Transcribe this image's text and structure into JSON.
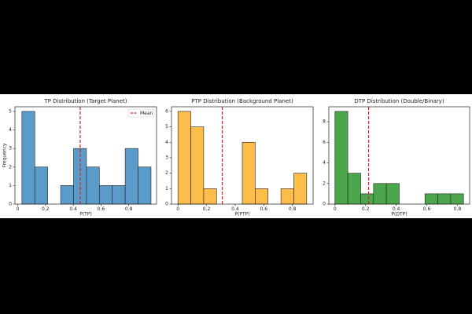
{
  "chart_data": [
    {
      "type": "histogram",
      "title": "TP Distribution (Target Planet)",
      "x_label": "P(TP)",
      "y_label": "Frequency",
      "bins": [
        0.03,
        0.123,
        0.216,
        0.309,
        0.402,
        0.495,
        0.588,
        0.681,
        0.774,
        0.867,
        0.96
      ],
      "values": [
        5,
        2,
        0,
        1,
        3,
        2,
        1,
        1,
        3,
        2
      ],
      "color": "#5a9bca",
      "xlim": [
        -0.02,
        1.0
      ],
      "xticks": [
        0.0,
        0.2,
        0.4,
        0.6,
        0.8
      ],
      "ylim": [
        0,
        5.25
      ],
      "yticks": [
        0,
        1,
        2,
        3,
        4,
        5
      ],
      "mean": 0.45,
      "mean_color": "#e02020",
      "legend": {
        "label": "Mean",
        "position": "upper right"
      }
    },
    {
      "type": "histogram",
      "title": "PTP Distribution (Background Planet)",
      "x_label": "P(PTP)",
      "bins": [
        0.0,
        0.09,
        0.18,
        0.27,
        0.36,
        0.45,
        0.54,
        0.63,
        0.72,
        0.81,
        0.9
      ],
      "values": [
        6,
        5,
        1,
        0,
        0,
        4,
        1,
        0,
        1,
        2
      ],
      "color": "#fdbd4b",
      "xlim": [
        -0.045,
        0.945
      ],
      "xticks": [
        0.0,
        0.2,
        0.4,
        0.6,
        0.8
      ],
      "ylim": [
        0,
        6.3
      ],
      "yticks": [
        0,
        1,
        2,
        3,
        4,
        5,
        6
      ],
      "mean": 0.31,
      "mean_color": "#e02020"
    },
    {
      "type": "histogram",
      "title": "DTP Distribution (Double/Binary)",
      "x_label": "P(DTP)",
      "bins": [
        0.0,
        0.084,
        0.168,
        0.252,
        0.336,
        0.42,
        0.504,
        0.588,
        0.672,
        0.756,
        0.84
      ],
      "values": [
        9,
        3,
        1,
        2,
        2,
        0,
        0,
        1,
        1,
        1
      ],
      "color": "#4ca64c",
      "xlim": [
        -0.04,
        0.88
      ],
      "xticks": [
        0.0,
        0.2,
        0.4,
        0.6,
        0.8
      ],
      "ylim": [
        0,
        9.45
      ],
      "yticks": [
        0,
        2,
        4,
        6,
        8
      ],
      "mean": 0.22,
      "mean_color": "#e02020"
    }
  ]
}
